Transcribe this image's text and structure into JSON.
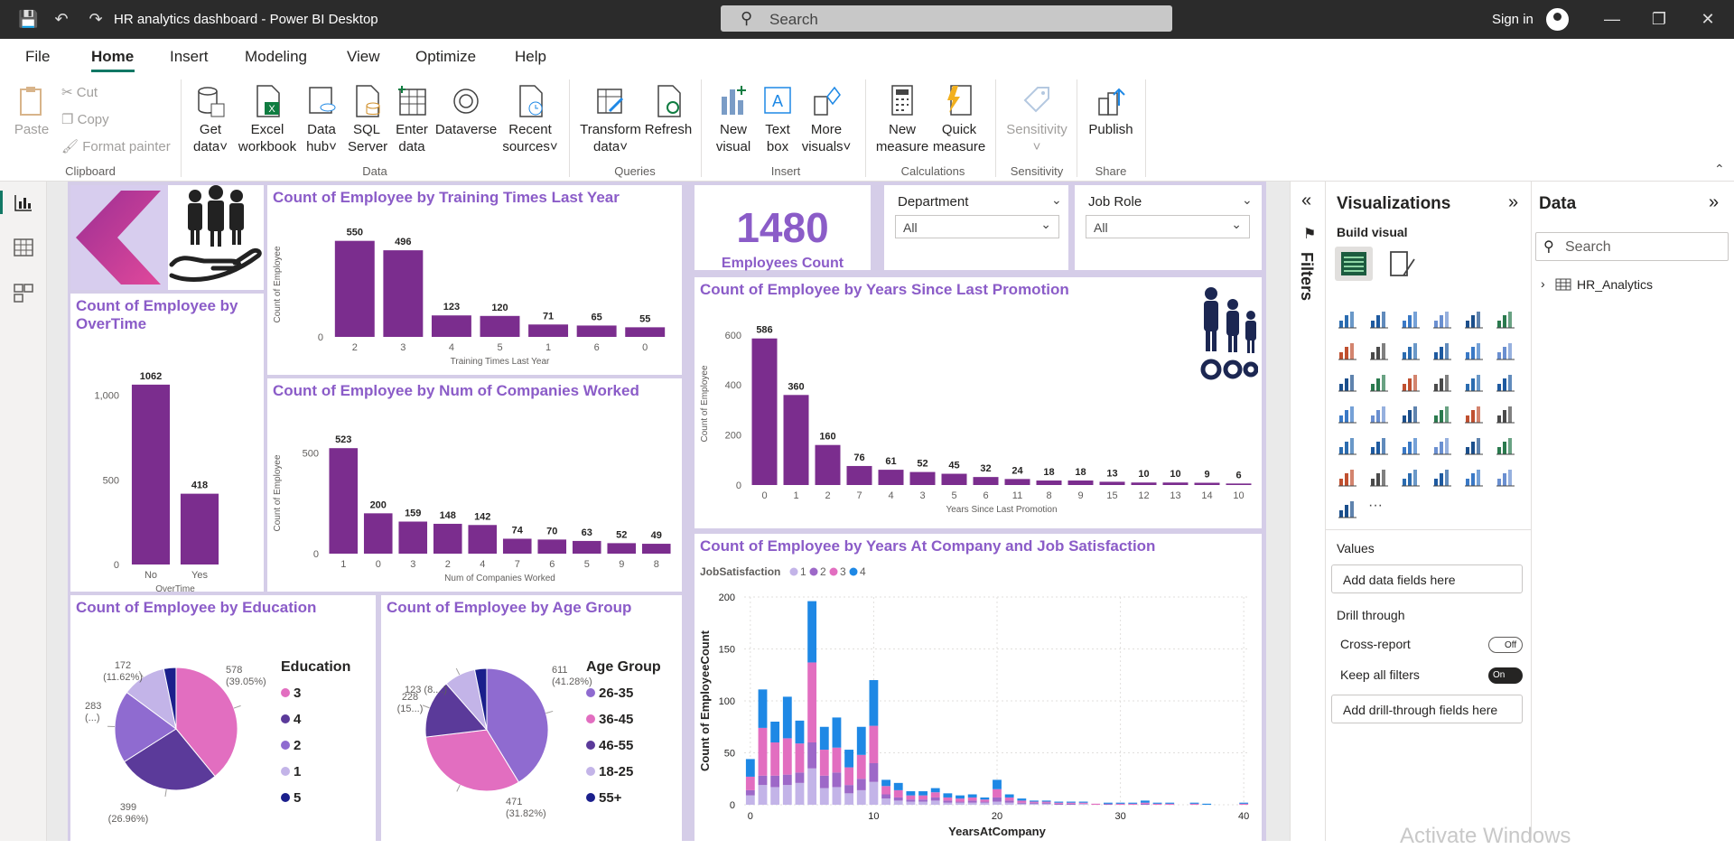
{
  "app": {
    "title": "HR analytics dashboard - Power BI Desktop",
    "search_placeholder": "Search",
    "sign_in": "Sign in"
  },
  "menu": [
    "File",
    "Home",
    "Insert",
    "Modeling",
    "View",
    "Optimize",
    "Help"
  ],
  "ribbon": {
    "clipboard": {
      "paste": "Paste",
      "cut": "Cut",
      "copy": "Copy",
      "format_painter": "Format painter",
      "group": "Clipboard"
    },
    "data": {
      "get_data": [
        "Get",
        "data"
      ],
      "excel": [
        "Excel",
        "workbook"
      ],
      "data_hub": [
        "Data",
        "hub"
      ],
      "sql": [
        "SQL",
        "Server"
      ],
      "enter": [
        "Enter",
        "data"
      ],
      "dataverse": "Dataverse",
      "recent": [
        "Recent",
        "sources"
      ],
      "group": "Data"
    },
    "queries": {
      "transform": [
        "Transform",
        "data"
      ],
      "refresh": "Refresh",
      "group": "Queries"
    },
    "insert": {
      "new_visual": [
        "New",
        "visual"
      ],
      "text_box": [
        "Text",
        "box"
      ],
      "more_visuals": [
        "More",
        "visuals"
      ],
      "group": "Insert"
    },
    "calculations": {
      "new_measure": [
        "New",
        "measure"
      ],
      "quick_measure": [
        "Quick",
        "measure"
      ],
      "group": "Calculations"
    },
    "sensitivity": {
      "label": "Sensitivity",
      "group": "Sensitivity"
    },
    "share": {
      "publish": "Publish",
      "group": "Share"
    }
  },
  "kpi": {
    "value": "1480",
    "label": "Employees Count"
  },
  "slicers": [
    {
      "title": "Department",
      "value": "All"
    },
    {
      "title": "Job Role",
      "value": "All"
    }
  ],
  "colors": {
    "bar": "#7b2d8e",
    "title": "#8b5cc8",
    "js1": "#c3b4e8",
    "js2": "#9d68c8",
    "js3": "#e26ec0",
    "js4": "#1e88e5"
  },
  "chart_data": [
    {
      "type": "bar",
      "title": "Count of Employee by OverTime",
      "xlabel": "OverTime",
      "ylabel": "",
      "categories": [
        "No",
        "Yes"
      ],
      "values": [
        1062,
        418
      ],
      "yticks": [
        "0",
        "500",
        "1,000"
      ],
      "ylim": [
        0,
        1200
      ]
    },
    {
      "type": "bar",
      "title": "Count of Employee by Training Times Last Year",
      "xlabel": "Training Times Last Year",
      "ylabel": "Count of Employee",
      "categories": [
        "2",
        "3",
        "4",
        "5",
        "1",
        "6",
        "0"
      ],
      "values": [
        550,
        496,
        123,
        120,
        71,
        65,
        55
      ],
      "yticks": [
        "0"
      ],
      "ylim": [
        0,
        600
      ]
    },
    {
      "type": "bar",
      "title": "Count of Employee by Num of Companies Worked",
      "xlabel": "Num of Companies Worked",
      "ylabel": "Count of Employee",
      "categories": [
        "1",
        "0",
        "3",
        "2",
        "4",
        "7",
        "6",
        "5",
        "9",
        "8"
      ],
      "values": [
        523,
        200,
        159,
        148,
        142,
        74,
        70,
        63,
        52,
        49
      ],
      "yticks": [
        "0",
        "500"
      ],
      "ylim": [
        0,
        600
      ]
    },
    {
      "type": "bar",
      "title": "Count of Employee by Years Since Last Promotion",
      "xlabel": "Years Since Last Promotion",
      "ylabel": "Count of Employee",
      "categories": [
        "0",
        "1",
        "2",
        "7",
        "4",
        "3",
        "5",
        "6",
        "11",
        "8",
        "9",
        "15",
        "12",
        "13",
        "14",
        "10"
      ],
      "values": [
        586,
        360,
        160,
        76,
        61,
        52,
        45,
        32,
        24,
        18,
        18,
        13,
        10,
        10,
        9,
        6
      ],
      "yticks": [
        "0",
        "200",
        "400",
        "600"
      ],
      "ylim": [
        0,
        650
      ]
    },
    {
      "type": "pie",
      "title": "Count of Employee by Education",
      "legend_title": "Education",
      "slices": [
        {
          "label": "3",
          "value": 578,
          "text": [
            "578",
            "(39.05%)"
          ]
        },
        {
          "label": "4",
          "value": 399,
          "text": [
            "399",
            "(26.96%)"
          ]
        },
        {
          "label": "2",
          "value": 283,
          "text": [
            "283",
            "(...)"
          ]
        },
        {
          "label": "1",
          "value": 172,
          "text": [
            "172",
            "(11.62%)"
          ]
        },
        {
          "label": "5",
          "value": 48,
          "text": []
        }
      ]
    },
    {
      "type": "pie",
      "title": "Count of Employee by Age Group",
      "legend_title": "Age Group",
      "slices": [
        {
          "label": "26-35",
          "value": 611,
          "text": [
            "611",
            "(41.28%)"
          ]
        },
        {
          "label": "36-45",
          "value": 471,
          "text": [
            "471",
            "(31.82%)"
          ]
        },
        {
          "label": "46-55",
          "value": 228,
          "text": [
            "228",
            "(15...)"
          ]
        },
        {
          "label": "18-25",
          "value": 123,
          "text": [
            "123 (8....)"
          ]
        },
        {
          "label": "55+",
          "value": 47,
          "text": []
        }
      ]
    },
    {
      "type": "bar",
      "stacked": true,
      "title": "Count of Employee by Years At Company and Job Satisfaction",
      "xlabel": "YearsAtCompany",
      "ylabel": "Count of EmployeeCount",
      "legend_title": "JobSatisfaction",
      "series_names": [
        "1",
        "2",
        "3",
        "4"
      ],
      "xticks": [
        "0",
        "10",
        "20",
        "30",
        "40"
      ],
      "yticks": [
        "0",
        "50",
        "100",
        "150",
        "200"
      ],
      "ylim": [
        0,
        200
      ],
      "x": [
        0,
        1,
        2,
        3,
        4,
        5,
        6,
        7,
        8,
        9,
        10,
        11,
        12,
        13,
        14,
        15,
        16,
        17,
        18,
        19,
        20,
        21,
        22,
        23,
        24,
        25,
        26,
        27,
        28,
        29,
        30,
        31,
        32,
        33,
        34,
        36,
        37,
        40
      ],
      "series": [
        {
          "name": "1",
          "values": [
            9,
            19,
            17,
            19,
            21,
            35,
            16,
            17,
            11,
            14,
            22,
            6,
            4,
            3,
            3,
            4,
            2,
            2,
            2,
            2,
            3,
            2,
            1,
            1,
            1,
            0,
            0,
            1,
            0,
            0,
            0,
            0,
            0,
            0,
            0,
            0,
            0,
            0
          ]
        },
        {
          "name": "2",
          "values": [
            5,
            9,
            11,
            10,
            10,
            25,
            12,
            14,
            8,
            11,
            18,
            4,
            3,
            2,
            2,
            3,
            2,
            1,
            2,
            1,
            4,
            2,
            1,
            1,
            1,
            1,
            1,
            0,
            0,
            1,
            0,
            0,
            1,
            0,
            0,
            0,
            0,
            0
          ]
        },
        {
          "name": "3",
          "values": [
            13,
            46,
            32,
            35,
            28,
            77,
            25,
            24,
            17,
            23,
            36,
            8,
            7,
            4,
            4,
            5,
            3,
            3,
            3,
            2,
            8,
            3,
            2,
            1,
            1,
            1,
            1,
            1,
            1,
            0,
            1,
            1,
            1,
            1,
            1,
            1,
            0,
            1
          ]
        },
        {
          "name": "4",
          "values": [
            17,
            37,
            20,
            40,
            22,
            59,
            22,
            29,
            17,
            27,
            44,
            6,
            7,
            4,
            4,
            4,
            4,
            3,
            3,
            2,
            9,
            3,
            2,
            1,
            1,
            1,
            1,
            1,
            0,
            1,
            1,
            1,
            2,
            1,
            1,
            1,
            1,
            1
          ]
        }
      ]
    }
  ],
  "panes": {
    "filters": "Filters",
    "visualizations": "Visualizations",
    "build_visual": "Build visual",
    "values": "Values",
    "add_fields": "Add data fields here",
    "drill_through": "Drill through",
    "cross_report": "Cross-report",
    "cross_state": "Off",
    "keep_filters": "Keep all filters",
    "keep_state": "On",
    "add_drill": "Add drill-through fields here",
    "data": "Data",
    "data_search": "Search",
    "table": "HR_Analytics"
  },
  "watermark": "Activate Windows"
}
